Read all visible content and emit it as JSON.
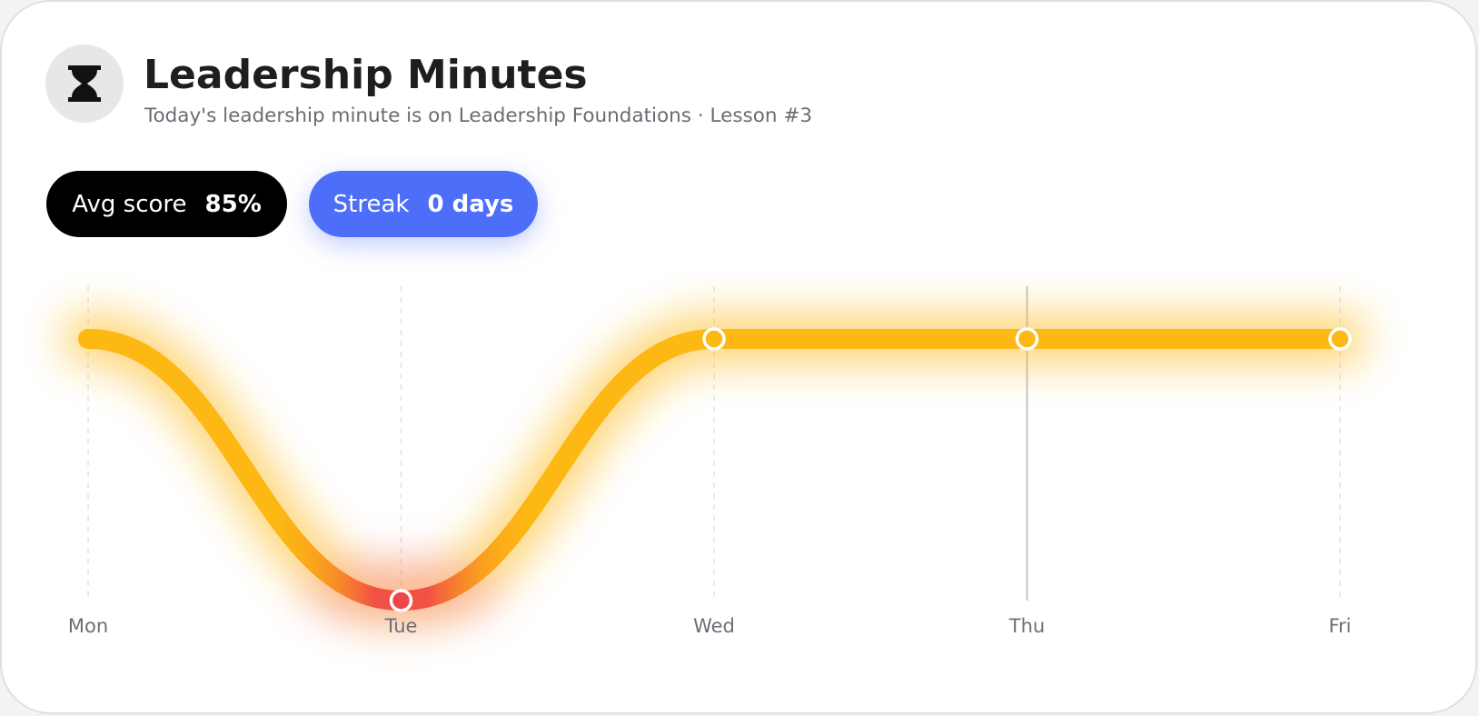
{
  "header": {
    "icon": "hourglass-icon",
    "title": "Leadership Minutes",
    "subtitle": "Today's leadership minute is on Leadership Foundations · Lesson #3"
  },
  "stats": {
    "avg_label": "Avg score",
    "avg_value": "85%",
    "streak_label": "Streak",
    "streak_value": "0 days"
  },
  "colors": {
    "line": "#fdb813",
    "line_low": "#f0464a",
    "streak_pill": "#4d6ef9",
    "avg_pill": "#000000"
  },
  "chart_data": {
    "type": "line",
    "categories": [
      "Mon",
      "Tue",
      "Wed",
      "Thu",
      "Fri"
    ],
    "values": [
      100,
      0,
      100,
      100,
      100
    ],
    "ylim": [
      0,
      100
    ],
    "grid": "vertical dashed",
    "highlighted_category": "Thu",
    "low_point_category": "Tue"
  }
}
